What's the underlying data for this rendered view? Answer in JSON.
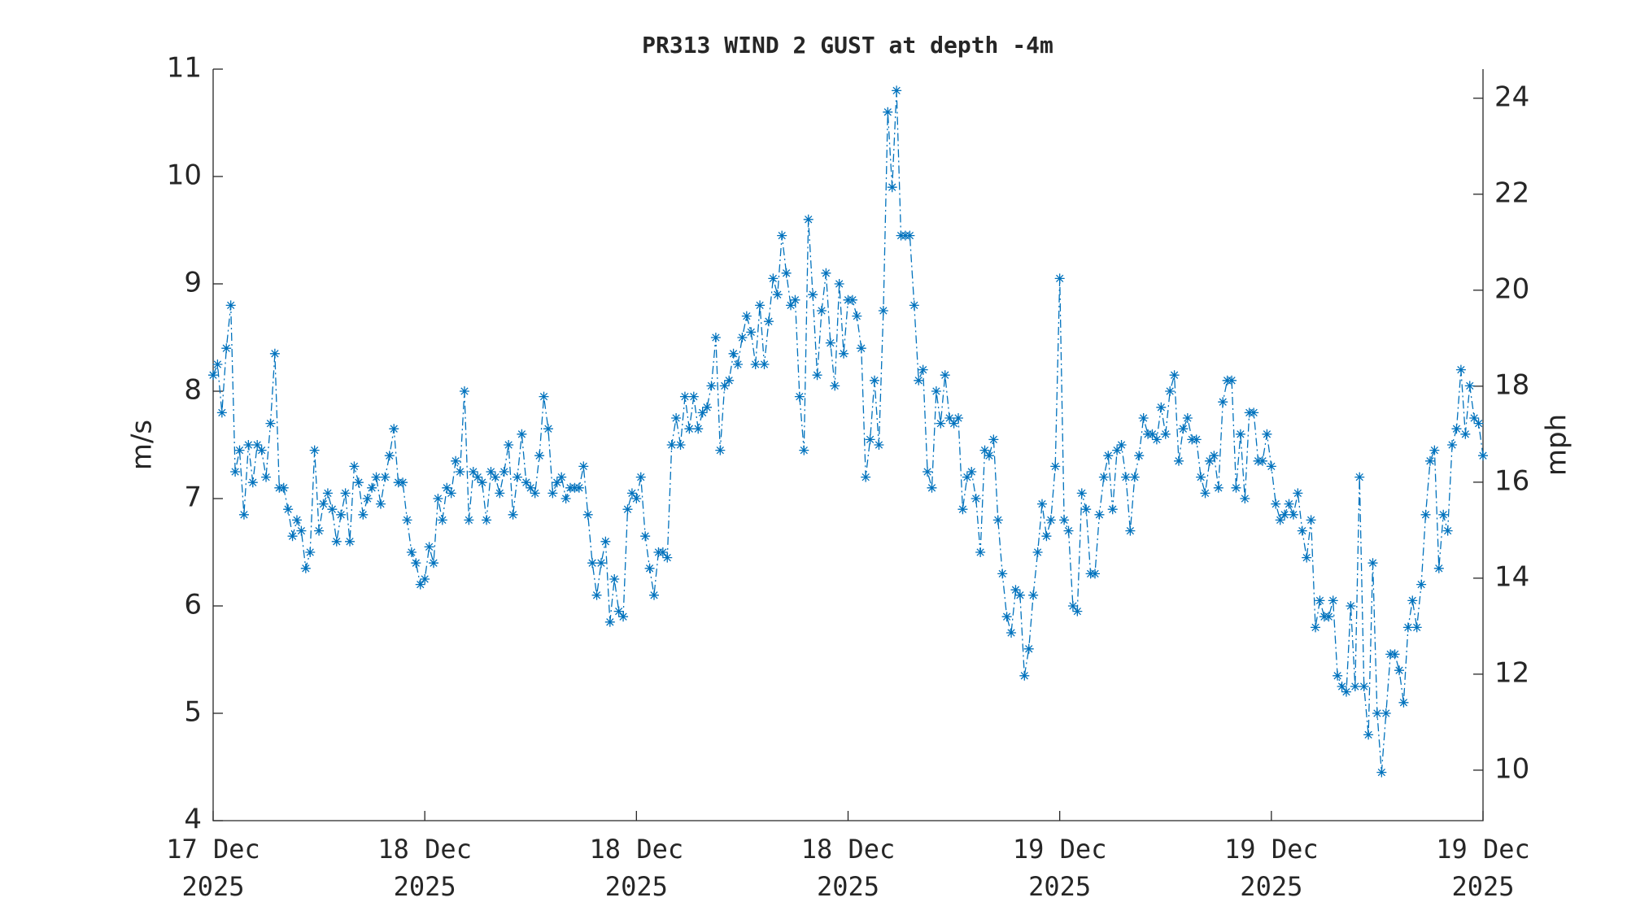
{
  "chart_data": {
    "type": "line",
    "title": "PR313 WIND 2 GUST at depth -4m",
    "ylabel": "m/s",
    "y2label": "mph",
    "color": "#0072bd",
    "line_style": "dashdot",
    "marker": "asterisk",
    "xlim": [
      0,
      288
    ],
    "xticks": [
      {
        "value": 0,
        "label": "17 Dec\n2025"
      },
      {
        "value": 48,
        "label": "18 Dec\n2025"
      },
      {
        "value": 96,
        "label": "18 Dec\n2025"
      },
      {
        "value": 144,
        "label": "18 Dec\n2025"
      },
      {
        "value": 192,
        "label": "19 Dec\n2025"
      },
      {
        "value": 240,
        "label": "19 Dec\n2025"
      },
      {
        "value": 288,
        "label": "19 Dec\n2025"
      }
    ],
    "ylim": [
      4,
      11
    ],
    "yticks": [
      4,
      5,
      6,
      7,
      8,
      9,
      10,
      11
    ],
    "y2lim": [
      8.948,
      24.606
    ],
    "y2ticks": [
      10,
      12,
      14,
      16,
      18,
      20,
      22,
      24
    ],
    "values": [
      8.15,
      8.25,
      7.8,
      8.4,
      8.8,
      7.25,
      7.45,
      6.85,
      7.5,
      7.15,
      7.5,
      7.45,
      7.2,
      7.7,
      8.35,
      7.1,
      7.1,
      6.9,
      6.65,
      6.8,
      6.7,
      6.35,
      6.5,
      7.45,
      6.7,
      6.95,
      7.05,
      6.9,
      6.6,
      6.85,
      7.05,
      6.6,
      7.3,
      7.15,
      6.85,
      7.0,
      7.1,
      7.2,
      6.95,
      7.2,
      7.4,
      7.65,
      7.15,
      7.15,
      6.8,
      6.5,
      6.4,
      6.2,
      6.25,
      6.55,
      6.4,
      7.0,
      6.8,
      7.1,
      7.05,
      7.35,
      7.25,
      8.0,
      6.8,
      7.25,
      7.2,
      7.15,
      6.8,
      7.25,
      7.2,
      7.05,
      7.25,
      7.5,
      6.85,
      7.2,
      7.6,
      7.15,
      7.1,
      7.05,
      7.4,
      7.95,
      7.65,
      7.05,
      7.15,
      7.2,
      7.0,
      7.1,
      7.1,
      7.1,
      7.3,
      6.85,
      6.4,
      6.1,
      6.4,
      6.6,
      5.85,
      6.25,
      5.95,
      5.9,
      6.9,
      7.05,
      7.0,
      7.2,
      6.65,
      6.35,
      6.1,
      6.5,
      6.5,
      6.45,
      7.5,
      7.75,
      7.5,
      7.95,
      7.65,
      7.95,
      7.65,
      7.8,
      7.85,
      8.05,
      8.5,
      7.45,
      8.05,
      8.1,
      8.35,
      8.25,
      8.5,
      8.7,
      8.55,
      8.25,
      8.8,
      8.25,
      8.65,
      9.05,
      8.9,
      9.45,
      9.1,
      8.8,
      8.85,
      7.95,
      7.45,
      9.6,
      8.9,
      8.15,
      8.75,
      9.1,
      8.45,
      8.05,
      9.0,
      8.35,
      8.85,
      8.85,
      8.7,
      8.4,
      7.2,
      7.55,
      8.1,
      7.5,
      8.75,
      10.6,
      9.9,
      10.8,
      9.45,
      9.45,
      9.45,
      8.8,
      8.1,
      8.2,
      7.25,
      7.1,
      8.0,
      7.7,
      8.15,
      7.75,
      7.7,
      7.75,
      6.9,
      7.2,
      7.25,
      7.0,
      6.5,
      7.45,
      7.4,
      7.55,
      6.8,
      6.3,
      5.9,
      5.75,
      6.15,
      6.1,
      5.35,
      5.6,
      6.1,
      6.5,
      6.95,
      6.65,
      6.8,
      7.3,
      9.05,
      6.8,
      6.7,
      6.0,
      5.95,
      7.05,
      6.9,
      6.3,
      6.3,
      6.85,
      7.2,
      7.4,
      6.9,
      7.45,
      7.5,
      7.2,
      6.7,
      7.2,
      7.4,
      7.75,
      7.6,
      7.6,
      7.55,
      7.85,
      7.6,
      8.0,
      8.15,
      7.35,
      7.65,
      7.75,
      7.55,
      7.55,
      7.2,
      7.05,
      7.35,
      7.4,
      7.1,
      7.9,
      8.1,
      8.1,
      7.1,
      7.6,
      7.0,
      7.8,
      7.8,
      7.35,
      7.35,
      7.6,
      7.3,
      6.95,
      6.8,
      6.85,
      6.95,
      6.85,
      7.05,
      6.7,
      6.45,
      6.8,
      5.8,
      6.05,
      5.9,
      5.9,
      6.05,
      5.35,
      5.25,
      5.2,
      6.0,
      5.25,
      7.2,
      5.25,
      4.8,
      6.4,
      5.0,
      4.45,
      5.0,
      5.55,
      5.55,
      5.4,
      5.1,
      5.8,
      6.05,
      5.8,
      6.2,
      6.85,
      7.35,
      7.45,
      6.35,
      6.85,
      6.7,
      7.5,
      7.65,
      8.2,
      7.6,
      8.05,
      7.75,
      7.7,
      7.4
    ]
  }
}
